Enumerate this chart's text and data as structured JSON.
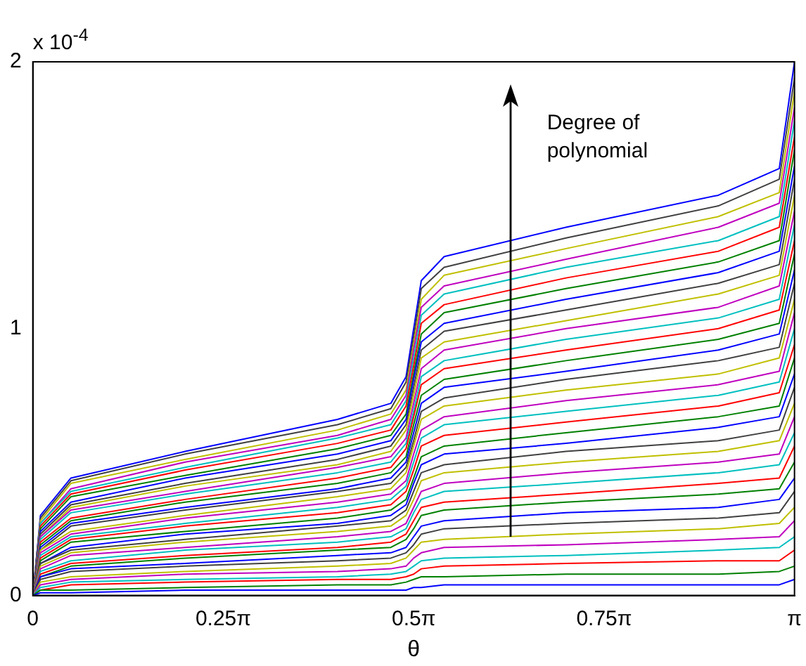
{
  "chart_data": {
    "type": "line",
    "xlabel": "θ",
    "x": [
      0,
      0.0314,
      0.1571,
      0.6283,
      1.2566,
      1.4765,
      1.5394,
      1.5708,
      1.6022,
      1.6965,
      2.1991,
      2.8274,
      3.0788,
      3.1416
    ],
    "xlim": [
      0,
      3.1416
    ],
    "xticks": [
      0,
      {
        "value": 0.7854,
        "label": "0.25π"
      },
      {
        "value": 1.5708,
        "label": "0.5π"
      },
      {
        "value": 2.3562,
        "label": "0.75π"
      },
      {
        "value": 3.1416,
        "label": "π"
      }
    ],
    "ylim": [
      0,
      2
    ],
    "yticks": [
      0,
      1,
      2
    ],
    "grid": false,
    "legend": false,
    "marker": "none",
    "line_style": "solid",
    "annotations": [
      "x 10$^{-4}$",
      "Degree of polynomial"
    ],
    "series": [
      {
        "color": "#0000ff",
        "values": [
          0,
          0.01,
          0.01,
          0.02,
          0.02,
          0.02,
          0.02,
          0.03,
          0.03,
          0.04,
          0.04,
          0.04,
          0.04,
          0.06
        ]
      },
      {
        "color": "#008000",
        "values": [
          0,
          0.02,
          0.02,
          0.03,
          0.04,
          0.04,
          0.05,
          0.06,
          0.07,
          0.07,
          0.08,
          0.08,
          0.09,
          0.11
        ]
      },
      {
        "color": "#ff0000",
        "values": [
          0,
          0.02,
          0.04,
          0.05,
          0.06,
          0.06,
          0.07,
          0.08,
          0.1,
          0.11,
          0.12,
          0.13,
          0.13,
          0.17
        ]
      },
      {
        "color": "#00bfbf",
        "values": [
          0,
          0.03,
          0.05,
          0.06,
          0.07,
          0.08,
          0.09,
          0.11,
          0.13,
          0.14,
          0.15,
          0.17,
          0.18,
          0.22
        ]
      },
      {
        "color": "#bf00bf",
        "values": [
          0,
          0.04,
          0.06,
          0.08,
          0.09,
          0.1,
          0.11,
          0.14,
          0.16,
          0.18,
          0.19,
          0.21,
          0.22,
          0.28
        ]
      },
      {
        "color": "#bfbf00",
        "values": [
          0,
          0.05,
          0.07,
          0.09,
          0.11,
          0.12,
          0.14,
          0.17,
          0.2,
          0.21,
          0.23,
          0.25,
          0.27,
          0.33
        ]
      },
      {
        "color": "#404040",
        "values": [
          0,
          0.06,
          0.09,
          0.11,
          0.13,
          0.14,
          0.16,
          0.19,
          0.23,
          0.25,
          0.27,
          0.29,
          0.31,
          0.39
        ]
      },
      {
        "color": "#0000ff",
        "values": [
          0,
          0.07,
          0.1,
          0.12,
          0.15,
          0.16,
          0.18,
          0.22,
          0.26,
          0.28,
          0.31,
          0.33,
          0.36,
          0.44
        ]
      },
      {
        "color": "#008000",
        "values": [
          0,
          0.07,
          0.11,
          0.14,
          0.17,
          0.18,
          0.21,
          0.25,
          0.3,
          0.32,
          0.35,
          0.38,
          0.4,
          0.5
        ]
      },
      {
        "color": "#ff0000",
        "values": [
          0,
          0.08,
          0.12,
          0.15,
          0.18,
          0.2,
          0.23,
          0.28,
          0.33,
          0.35,
          0.38,
          0.42,
          0.44,
          0.56
        ]
      },
      {
        "color": "#00bfbf",
        "values": [
          0,
          0.09,
          0.13,
          0.17,
          0.2,
          0.22,
          0.25,
          0.31,
          0.36,
          0.39,
          0.42,
          0.46,
          0.49,
          0.61
        ]
      },
      {
        "color": "#bf00bf",
        "values": [
          0,
          0.1,
          0.15,
          0.18,
          0.22,
          0.24,
          0.27,
          0.33,
          0.39,
          0.42,
          0.46,
          0.5,
          0.53,
          0.67
        ]
      },
      {
        "color": "#bfbf00",
        "values": [
          0,
          0.11,
          0.16,
          0.2,
          0.24,
          0.26,
          0.3,
          0.36,
          0.43,
          0.46,
          0.5,
          0.54,
          0.58,
          0.72
        ]
      },
      {
        "color": "#404040",
        "values": [
          0,
          0.12,
          0.17,
          0.21,
          0.26,
          0.28,
          0.32,
          0.39,
          0.46,
          0.49,
          0.54,
          0.58,
          0.62,
          0.78
        ]
      },
      {
        "color": "#0000ff",
        "values": [
          0,
          0.12,
          0.18,
          0.23,
          0.27,
          0.3,
          0.34,
          0.42,
          0.49,
          0.53,
          0.57,
          0.63,
          0.67,
          0.83
        ]
      },
      {
        "color": "#008000",
        "values": [
          0,
          0.13,
          0.2,
          0.24,
          0.29,
          0.32,
          0.36,
          0.44,
          0.52,
          0.56,
          0.61,
          0.67,
          0.71,
          0.89
        ]
      },
      {
        "color": "#ff0000",
        "values": [
          0,
          0.14,
          0.21,
          0.26,
          0.31,
          0.34,
          0.39,
          0.47,
          0.56,
          0.6,
          0.65,
          0.71,
          0.76,
          0.94
        ]
      },
      {
        "color": "#00bfbf",
        "values": [
          0,
          0.15,
          0.22,
          0.27,
          0.33,
          0.36,
          0.41,
          0.5,
          0.59,
          0.64,
          0.69,
          0.75,
          0.8,
          1
        ]
      },
      {
        "color": "#bf00bf",
        "values": [
          0,
          0.16,
          0.23,
          0.29,
          0.35,
          0.38,
          0.43,
          0.53,
          0.62,
          0.67,
          0.73,
          0.79,
          0.84,
          1.06
        ]
      },
      {
        "color": "#bfbf00",
        "values": [
          0,
          0.17,
          0.24,
          0.3,
          0.37,
          0.4,
          0.46,
          0.56,
          0.66,
          0.71,
          0.77,
          0.83,
          0.89,
          1.11
        ]
      },
      {
        "color": "#404040",
        "values": [
          0,
          0.17,
          0.26,
          0.32,
          0.39,
          0.42,
          0.48,
          0.58,
          0.69,
          0.74,
          0.81,
          0.88,
          0.93,
          1.17
        ]
      },
      {
        "color": "#0000ff",
        "values": [
          0,
          0.18,
          0.27,
          0.33,
          0.4,
          0.44,
          0.5,
          0.61,
          0.72,
          0.78,
          0.84,
          0.92,
          0.98,
          1.22
        ]
      },
      {
        "color": "#008000",
        "values": [
          0,
          0.19,
          0.28,
          0.35,
          0.42,
          0.46,
          0.52,
          0.64,
          0.75,
          0.81,
          0.88,
          0.96,
          1.02,
          1.28
        ]
      },
      {
        "color": "#ff0000",
        "values": [
          0,
          0.2,
          0.29,
          0.36,
          0.44,
          0.48,
          0.55,
          0.67,
          0.79,
          0.85,
          0.92,
          1,
          1.07,
          1.33
        ]
      },
      {
        "color": "#00bfbf",
        "values": [
          0,
          0.21,
          0.31,
          0.38,
          0.46,
          0.5,
          0.57,
          0.69,
          0.82,
          0.88,
          0.96,
          1.04,
          1.11,
          1.39
        ]
      },
      {
        "color": "#bf00bf",
        "values": [
          0,
          0.22,
          0.32,
          0.39,
          0.48,
          0.52,
          0.59,
          0.72,
          0.85,
          0.92,
          1,
          1.08,
          1.16,
          1.44
        ]
      },
      {
        "color": "#bfbf00",
        "values": [
          0,
          0.22,
          0.33,
          0.41,
          0.49,
          0.54,
          0.62,
          0.75,
          0.89,
          0.95,
          1.03,
          1.13,
          1.2,
          1.5
        ]
      },
      {
        "color": "#404040",
        "values": [
          0,
          0.23,
          0.34,
          0.42,
          0.51,
          0.56,
          0.64,
          0.78,
          0.92,
          0.99,
          1.07,
          1.17,
          1.24,
          1.56
        ]
      },
      {
        "color": "#0000ff",
        "values": [
          0,
          0.24,
          0.35,
          0.44,
          0.53,
          0.58,
          0.66,
          0.81,
          0.95,
          1.02,
          1.11,
          1.21,
          1.29,
          1.61
        ]
      },
      {
        "color": "#008000",
        "values": [
          0,
          0.25,
          0.37,
          0.45,
          0.55,
          0.6,
          0.68,
          0.83,
          0.98,
          1.06,
          1.15,
          1.25,
          1.33,
          1.67
        ]
      },
      {
        "color": "#ff0000",
        "values": [
          0,
          0.26,
          0.38,
          0.47,
          0.57,
          0.62,
          0.71,
          0.86,
          1.02,
          1.09,
          1.19,
          1.29,
          1.38,
          1.72
        ]
      },
      {
        "color": "#00bfbf",
        "values": [
          0,
          0.27,
          0.39,
          0.48,
          0.59,
          0.64,
          0.73,
          0.89,
          1.05,
          1.13,
          1.23,
          1.33,
          1.42,
          1.78
        ]
      },
      {
        "color": "#bf00bf",
        "values": [
          0,
          0.27,
          0.4,
          0.5,
          0.6,
          0.66,
          0.75,
          0.92,
          1.08,
          1.16,
          1.26,
          1.38,
          1.47,
          1.83
        ]
      },
      {
        "color": "#bfbf00",
        "values": [
          0,
          0.28,
          0.42,
          0.51,
          0.62,
          0.68,
          0.77,
          0.94,
          1.11,
          1.2,
          1.3,
          1.42,
          1.51,
          1.89
        ]
      },
      {
        "color": "#404040",
        "values": [
          0,
          0.29,
          0.43,
          0.53,
          0.64,
          0.7,
          0.8,
          0.97,
          1.15,
          1.23,
          1.34,
          1.46,
          1.56,
          1.94
        ]
      },
      {
        "color": "#0000ff",
        "values": [
          0,
          0.3,
          0.44,
          0.54,
          0.66,
          0.72,
          0.82,
          1,
          1.18,
          1.27,
          1.38,
          1.5,
          1.6,
          2
        ]
      }
    ]
  }
}
